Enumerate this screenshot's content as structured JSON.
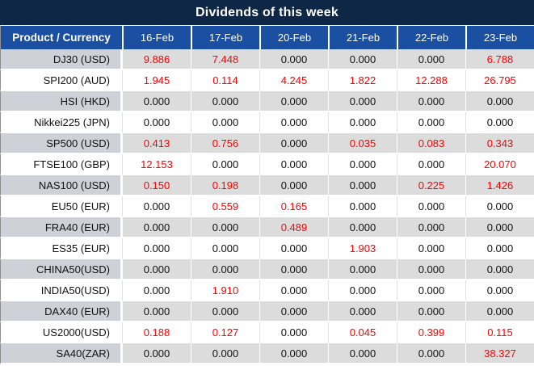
{
  "title": "Dividends of this week",
  "colors": {
    "title_bg": "#0f2747",
    "header_bg": "#1b4fa2",
    "dividend_red": "#ff0000",
    "zero_text": "#111111",
    "gray_row_product": "#ced2d8",
    "gray_row_value": "#dcdcdc"
  },
  "table": {
    "product_header": "Product / Currency",
    "date_headers": [
      "16-Feb",
      "17-Feb",
      "20-Feb",
      "21-Feb",
      "22-Feb",
      "23-Feb"
    ],
    "rows": [
      {
        "product": "DJ30 (USD)",
        "values": [
          "9.886",
          "7.448",
          "0.000",
          "0.000",
          "0.000",
          "6.788"
        ]
      },
      {
        "product": "SPI200 (AUD)",
        "values": [
          "1.945",
          "0.114",
          "4.245",
          "1.822",
          "12.288",
          "26.795"
        ]
      },
      {
        "product": "HSI (HKD)",
        "values": [
          "0.000",
          "0.000",
          "0.000",
          "0.000",
          "0.000",
          "0.000"
        ]
      },
      {
        "product": "Nikkei225 (JPN)",
        "values": [
          "0.000",
          "0.000",
          "0.000",
          "0.000",
          "0.000",
          "0.000"
        ]
      },
      {
        "product": "SP500 (USD)",
        "values": [
          "0.413",
          "0.756",
          "0.000",
          "0.035",
          "0.083",
          "0.343"
        ]
      },
      {
        "product": "FTSE100 (GBP)",
        "values": [
          "12.153",
          "0.000",
          "0.000",
          "0.000",
          "0.000",
          "20.070"
        ]
      },
      {
        "product": "NAS100 (USD)",
        "values": [
          "0.150",
          "0.198",
          "0.000",
          "0.000",
          "0.225",
          "1.426"
        ]
      },
      {
        "product": "EU50 (EUR)",
        "values": [
          "0.000",
          "0.559",
          "0.165",
          "0.000",
          "0.000",
          "0.000"
        ]
      },
      {
        "product": "FRA40 (EUR)",
        "values": [
          "0.000",
          "0.000",
          "0.489",
          "0.000",
          "0.000",
          "0.000"
        ]
      },
      {
        "product": "ES35 (EUR)",
        "values": [
          "0.000",
          "0.000",
          "0.000",
          "1.903",
          "0.000",
          "0.000"
        ]
      },
      {
        "product": "CHINA50(USD)",
        "values": [
          "0.000",
          "0.000",
          "0.000",
          "0.000",
          "0.000",
          "0.000"
        ]
      },
      {
        "product": "INDIA50(USD)",
        "values": [
          "0.000",
          "1.910",
          "0.000",
          "0.000",
          "0.000",
          "0.000"
        ]
      },
      {
        "product": "DAX40 (EUR)",
        "values": [
          "0.000",
          "0.000",
          "0.000",
          "0.000",
          "0.000",
          "0.000"
        ]
      },
      {
        "product": "US2000(USD)",
        "values": [
          "0.188",
          "0.127",
          "0.000",
          "0.045",
          "0.399",
          "0.115"
        ]
      },
      {
        "product": "SA40(ZAR)",
        "values": [
          "0.000",
          "0.000",
          "0.000",
          "0.000",
          "0.000",
          "38.327"
        ]
      }
    ]
  }
}
